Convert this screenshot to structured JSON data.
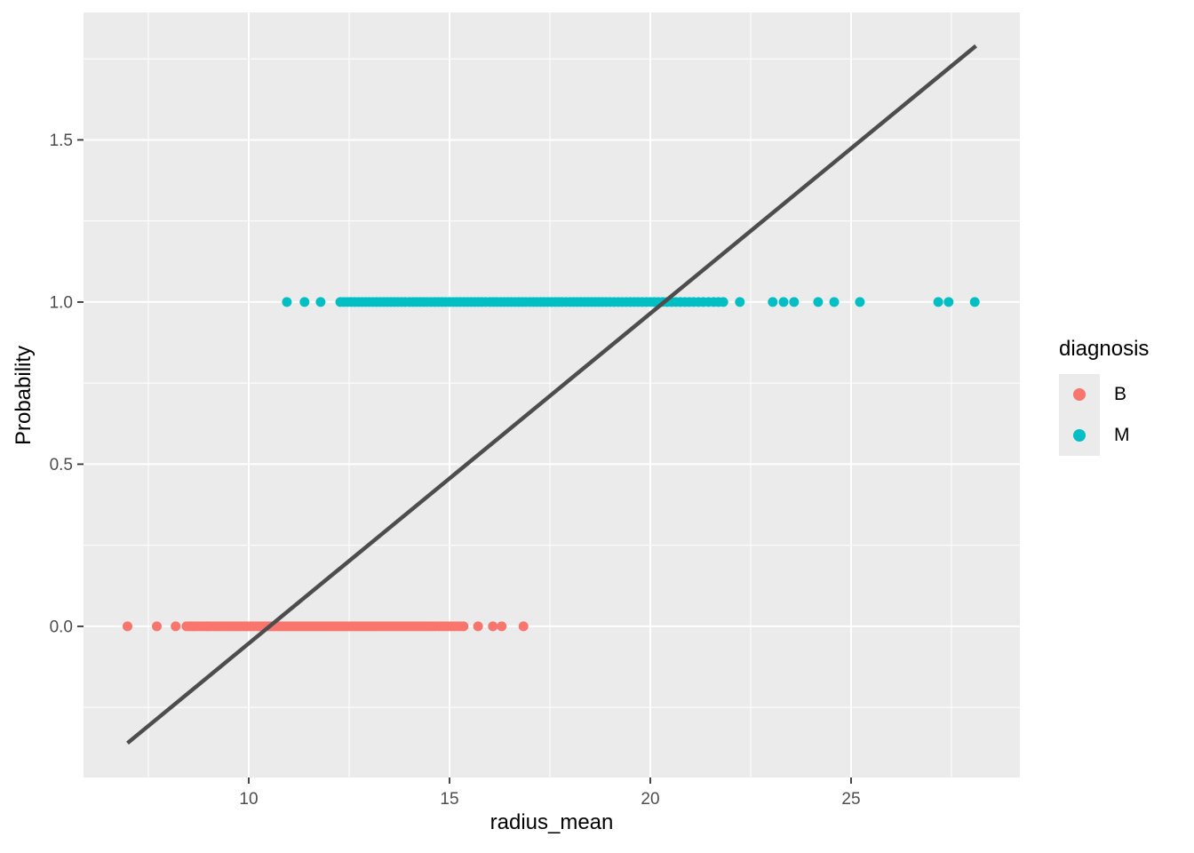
{
  "figure": {
    "background": "#FFFFFF",
    "panel_background": "#EBEBEB",
    "gridline_color": "#FFFFFF",
    "tick_mark_color": "#333333",
    "tick_label_color": "#4D4D4D",
    "axis_title_color": "#000000"
  },
  "chart_data": {
    "type": "scatter",
    "title": "",
    "xlabel": "radius_mean",
    "ylabel": "Probability",
    "xlim": [
      5.885,
      29.204
    ],
    "ylim": [
      -0.466,
      1.893
    ],
    "grid": true,
    "x_ticks": [
      10,
      15,
      20,
      25
    ],
    "x_tick_labels": [
      "10",
      "15",
      "20",
      "25"
    ],
    "x_minor_ticks": [
      7.5,
      12.5,
      17.5,
      22.5,
      27.5
    ],
    "y_ticks": [
      0.0,
      0.5,
      1.0,
      1.5
    ],
    "y_tick_labels": [
      "0.0",
      "0.5",
      "1.0",
      "1.5"
    ],
    "y_minor_ticks": [
      -0.25,
      0.25,
      0.75,
      1.25,
      1.75
    ],
    "legend": {
      "title": "diagnosis",
      "position": "right"
    },
    "series": [
      {
        "name": "B",
        "color": "#F8766D",
        "y": 0,
        "x": [
          6.98,
          7.71,
          8.18,
          8.45,
          8.51,
          8.57,
          8.62,
          8.67,
          8.73,
          8.8,
          8.88,
          8.95,
          9.0,
          9.06,
          9.13,
          9.19,
          9.25,
          9.31,
          9.38,
          9.44,
          9.5,
          9.56,
          9.63,
          9.69,
          9.75,
          9.81,
          9.88,
          9.94,
          10.0,
          10.06,
          10.12,
          10.18,
          10.24,
          10.3,
          10.36,
          10.42,
          10.48,
          10.54,
          10.6,
          10.66,
          10.72,
          10.78,
          10.84,
          10.9,
          10.96,
          11.02,
          11.08,
          11.14,
          11.2,
          11.26,
          11.32,
          11.38,
          11.44,
          11.5,
          11.56,
          11.62,
          11.68,
          11.74,
          11.8,
          11.86,
          11.92,
          11.98,
          12.04,
          12.1,
          12.16,
          12.22,
          12.28,
          12.34,
          12.4,
          12.46,
          12.52,
          12.58,
          12.64,
          12.7,
          12.76,
          12.82,
          12.88,
          12.94,
          13.0,
          13.06,
          13.12,
          13.18,
          13.24,
          13.3,
          13.37,
          13.44,
          13.51,
          13.58,
          13.65,
          13.72,
          13.79,
          13.86,
          13.93,
          14.0,
          14.07,
          14.14,
          14.21,
          14.28,
          14.35,
          14.42,
          14.49,
          14.56,
          14.64,
          14.72,
          14.8,
          14.88,
          14.96,
          15.04,
          15.12,
          15.2,
          15.28,
          15.35,
          15.71,
          16.08,
          16.3,
          16.84
        ]
      },
      {
        "name": "M",
        "color": "#00BFC4",
        "y": 1,
        "x": [
          10.95,
          11.39,
          11.79,
          12.28,
          12.37,
          12.46,
          12.55,
          12.64,
          12.73,
          12.82,
          12.91,
          13.0,
          13.09,
          13.18,
          13.27,
          13.36,
          13.45,
          13.54,
          13.63,
          13.72,
          13.81,
          13.9,
          14.0,
          14.09,
          14.18,
          14.27,
          14.36,
          14.45,
          14.54,
          14.63,
          14.72,
          14.81,
          14.9,
          15.0,
          15.09,
          15.18,
          15.27,
          15.36,
          15.45,
          15.54,
          15.63,
          15.72,
          15.81,
          15.9,
          16.0,
          16.09,
          16.18,
          16.27,
          16.36,
          16.45,
          16.54,
          16.63,
          16.72,
          16.81,
          16.9,
          17.0,
          17.09,
          17.18,
          17.27,
          17.36,
          17.45,
          17.54,
          17.63,
          17.72,
          17.81,
          17.9,
          18.0,
          18.09,
          18.18,
          18.27,
          18.36,
          18.45,
          18.54,
          18.63,
          18.72,
          18.81,
          18.9,
          19.0,
          19.1,
          19.2,
          19.3,
          19.4,
          19.5,
          19.6,
          19.7,
          19.8,
          19.9,
          20.0,
          20.1,
          20.2,
          20.31,
          20.42,
          20.53,
          20.64,
          20.75,
          20.86,
          20.97,
          21.08,
          21.2,
          21.32,
          21.45,
          21.58,
          21.7,
          21.82,
          22.23,
          23.05,
          23.32,
          23.58,
          24.18,
          24.58,
          25.22,
          27.17,
          27.43,
          28.08
        ]
      }
    ],
    "regression_line": {
      "x1": 6.98,
      "y1": -0.36,
      "x2": 28.11,
      "y2": 1.79,
      "slope": 0.101,
      "intercept": -1.07,
      "color": "#4D4D4D",
      "width": 4.5
    }
  }
}
